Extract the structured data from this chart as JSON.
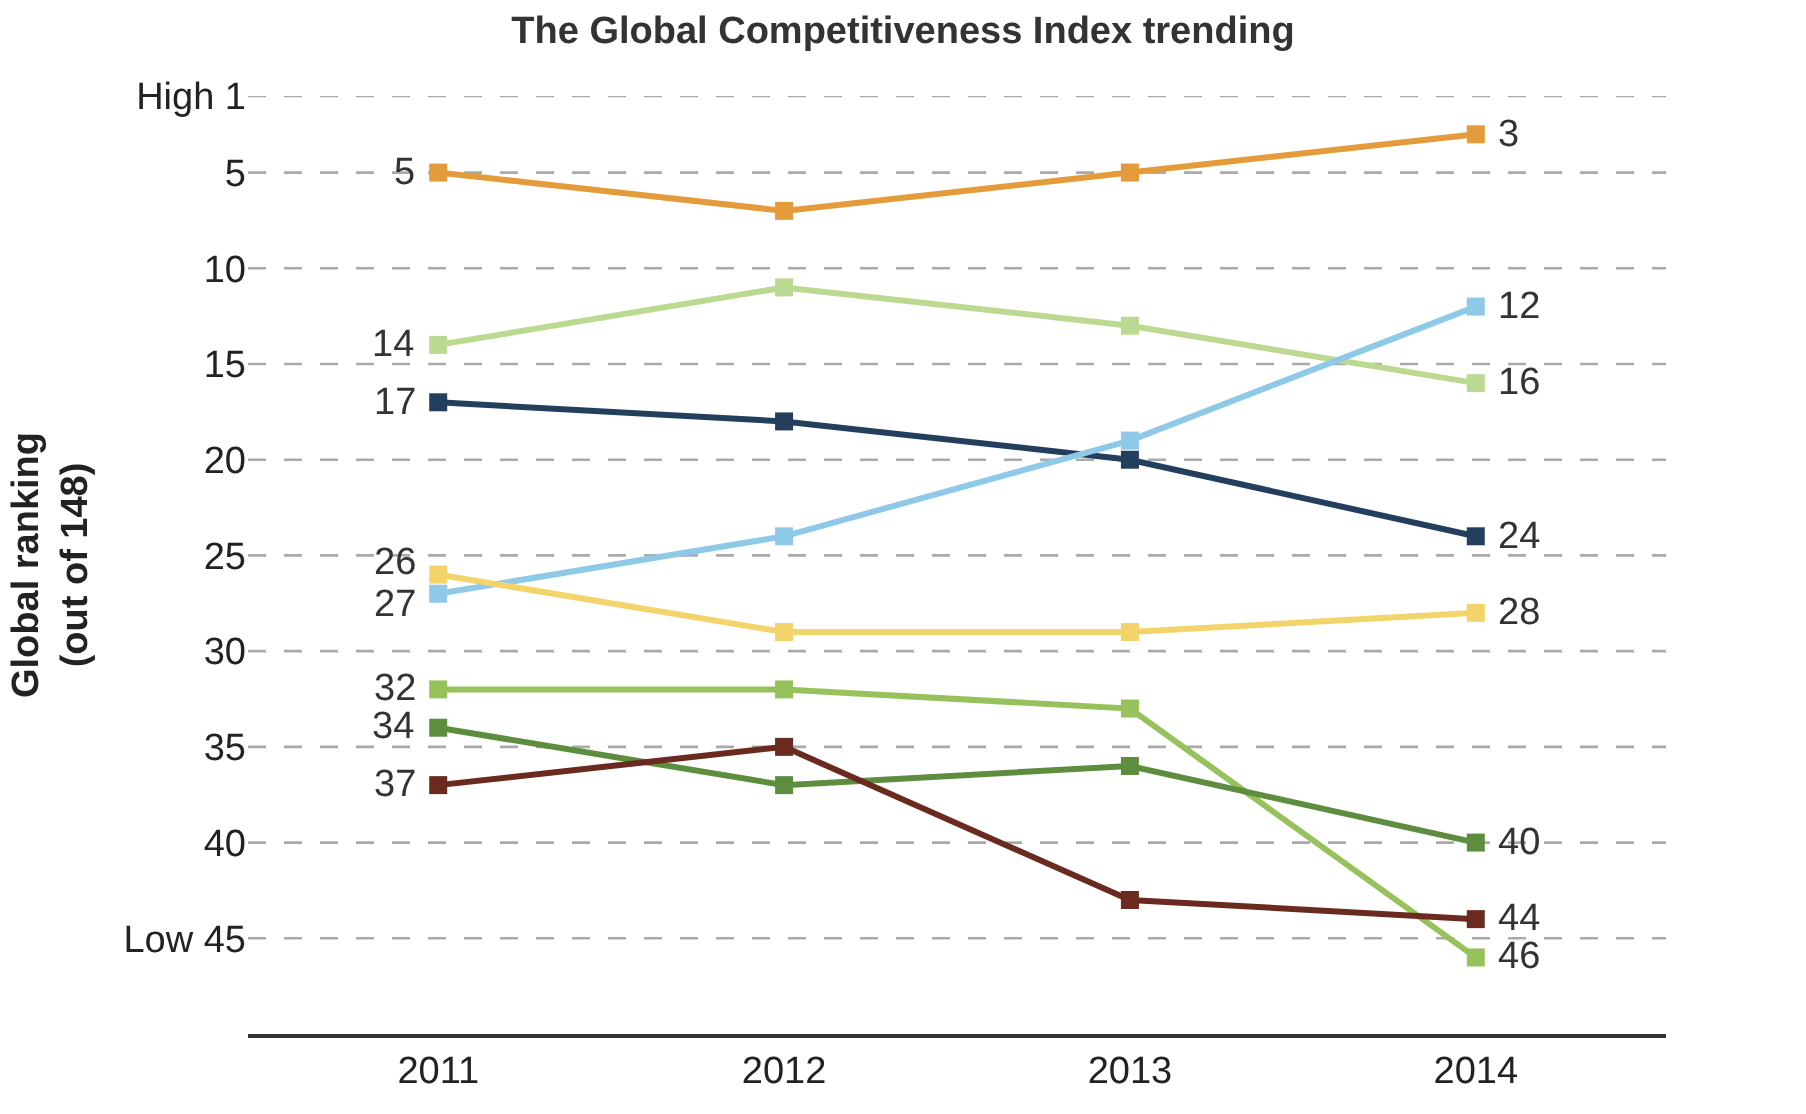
{
  "chart_data": {
    "type": "line",
    "title": "The Global Competitiveness Index trending",
    "ylabel": "Global ranking\n(out of 148)",
    "categories": [
      "2011",
      "2012",
      "2013",
      "2014"
    ],
    "ylim": [
      50,
      1
    ],
    "yticks": [
      {
        "value": 1,
        "label": "High 1"
      },
      5,
      10,
      15,
      20,
      25,
      30,
      35,
      40,
      {
        "value": 45,
        "label": "Low 45"
      }
    ],
    "grid": "y",
    "marker": "square",
    "line_style": "solid",
    "series": [
      {
        "color": "#e39b3c",
        "values": [
          5,
          7,
          5,
          3
        ],
        "value_labels": [
          "5",
          null,
          null,
          "3"
        ]
      },
      {
        "color": "#bcd992",
        "values": [
          14,
          11,
          13,
          16
        ],
        "value_labels": [
          "14",
          null,
          null,
          "16"
        ]
      },
      {
        "color": "#243f5e",
        "values": [
          17,
          18,
          20,
          24
        ],
        "value_labels": [
          "17",
          null,
          null,
          "24"
        ]
      },
      {
        "color": "#8fc9e8",
        "values": [
          27,
          24,
          19,
          12
        ],
        "value_labels": [
          "27",
          null,
          null,
          "12"
        ]
      },
      {
        "color": "#f2d46b",
        "values": [
          26,
          29,
          29,
          28
        ],
        "value_labels": [
          "26",
          null,
          null,
          "28"
        ]
      },
      {
        "color": "#97c15b",
        "values": [
          32,
          32,
          33,
          46
        ],
        "value_labels": [
          "32",
          null,
          null,
          "46"
        ]
      },
      {
        "color": "#5f8d3f",
        "values": [
          34,
          37,
          36,
          40
        ],
        "value_labels": [
          "34",
          null,
          null,
          "40"
        ]
      },
      {
        "color": "#6b2a1f",
        "values": [
          37,
          35,
          43,
          44
        ],
        "value_labels": [
          "37",
          null,
          null,
          "44"
        ]
      }
    ]
  }
}
